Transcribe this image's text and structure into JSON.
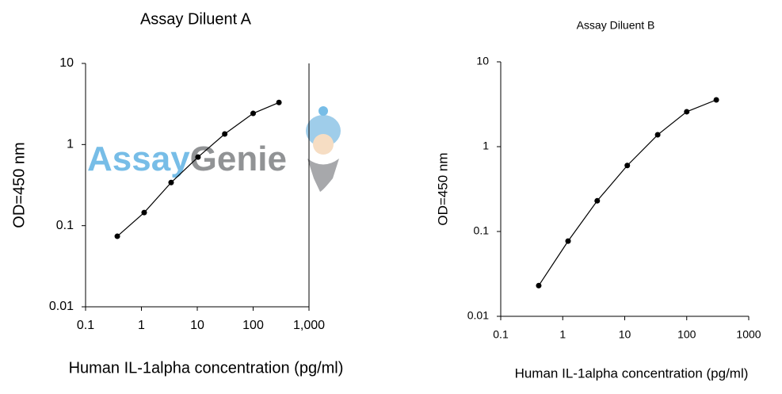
{
  "chart_data": [
    {
      "type": "line",
      "title": "Assay Diluent A",
      "x_label": "Human IL-1alpha concentration (pg/ml)",
      "y_label": "OD=450 nm",
      "x": [
        0.37,
        1.12,
        3.4,
        10.3,
        31,
        100,
        290
      ],
      "series": [
        {
          "color": "#000000",
          "values": [
            0.074,
            0.145,
            0.34,
            0.7,
            1.35,
            2.42,
            3.3
          ]
        }
      ],
      "xscale": "log",
      "yscale": "log",
      "xlim": [
        0.1,
        1000
      ],
      "ylim": [
        0.01,
        10
      ],
      "xticks": [
        0.1,
        1,
        10,
        100,
        {
          "value": 1000,
          "label": "1,000"
        }
      ],
      "yticks": [
        0.01,
        0.1,
        1,
        10
      ]
    },
    {
      "type": "line",
      "title": "Assay Diluent B",
      "x_label": "Human IL-1alpha concentration (pg/ml)",
      "y_label": "OD=450 nm",
      "x": [
        0.41,
        1.22,
        3.6,
        11,
        34,
        100,
        300
      ],
      "series": [
        {
          "color": "#000000",
          "values": [
            0.023,
            0.077,
            0.23,
            0.6,
            1.38,
            2.58,
            3.56
          ]
        }
      ],
      "xscale": "log",
      "yscale": "log",
      "xlim": [
        0.1,
        1000
      ],
      "ylim": [
        0.01,
        10
      ],
      "xticks": [
        0.1,
        1,
        10,
        100,
        1000
      ],
      "yticks": [
        0.01,
        0.1,
        1,
        10
      ]
    }
  ],
  "watermark": {
    "part1": "Assay",
    "part2": "Genie"
  }
}
